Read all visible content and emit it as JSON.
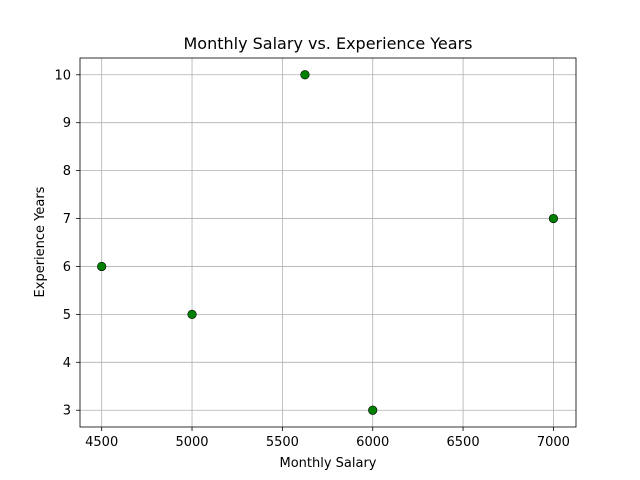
{
  "chart_data": {
    "type": "scatter",
    "title": "Monthly Salary vs. Experience Years",
    "xlabel": "Monthly Salary",
    "ylabel": "Experience Years",
    "x": [
      4500,
      5000,
      5625,
      6000,
      7000
    ],
    "y": [
      6,
      5,
      10,
      3,
      7
    ],
    "xlim": [
      4380,
      7125
    ],
    "ylim": [
      2.65,
      10.35
    ],
    "xticks": [
      4500,
      5000,
      5500,
      6000,
      6500,
      7000
    ],
    "yticks": [
      3,
      4,
      5,
      6,
      7,
      8,
      9,
      10
    ],
    "xtick_labels": [
      "4500",
      "5000",
      "5500",
      "6000",
      "6500",
      "7000"
    ],
    "ytick_labels": [
      "3",
      "4",
      "5",
      "6",
      "7",
      "8",
      "9",
      "10"
    ],
    "grid": true,
    "marker_color": "#008000",
    "marker_edge_color": "#000000"
  }
}
